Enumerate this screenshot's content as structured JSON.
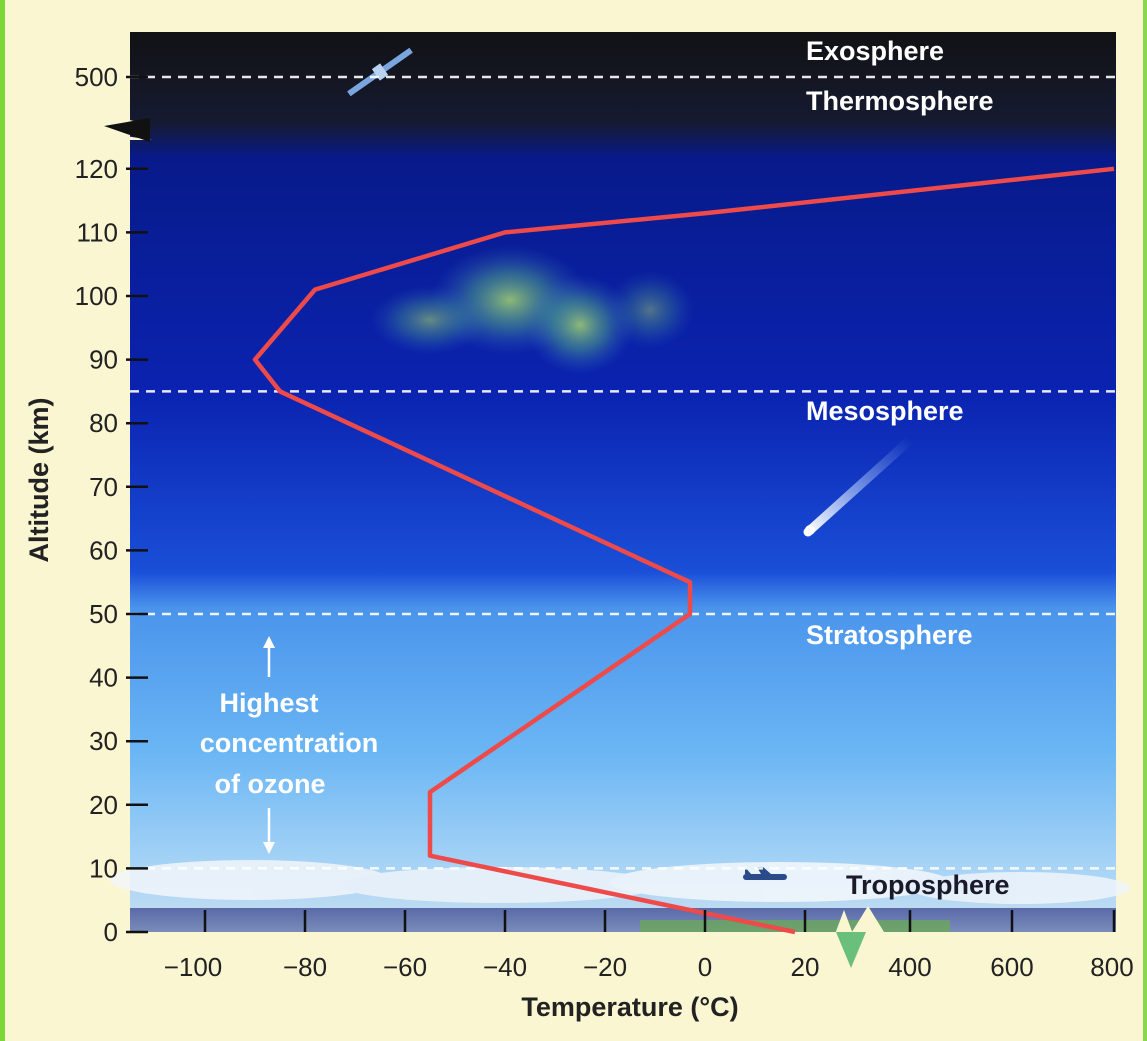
{
  "chart_data": {
    "type": "line",
    "title": "",
    "xlabel": "Temperature (°C)",
    "ylabel": "Altitude (km)",
    "x_ticks": [
      "−100",
      "−80",
      "−60",
      "−40",
      "−20",
      "0",
      "20",
      "400",
      "600",
      "800"
    ],
    "x_tick_values": [
      -100,
      -80,
      -60,
      -40,
      -20,
      0,
      20,
      400,
      600,
      800
    ],
    "y_ticks": [
      "0",
      "10",
      "20",
      "30",
      "40",
      "50",
      "60",
      "70",
      "80",
      "90",
      "100",
      "110",
      "120",
      "500"
    ],
    "y_tick_values": [
      0,
      10,
      20,
      30,
      40,
      50,
      60,
      70,
      80,
      90,
      100,
      110,
      120,
      500
    ],
    "xlim": [
      -110,
      800
    ],
    "ylim": [
      0,
      500
    ],
    "axis_breaks": {
      "x": "between 20 and 400",
      "y": "between 120 and 500"
    },
    "series": [
      {
        "name": "Temperature profile",
        "color": "#ee4a4a",
        "points": [
          [
            18,
            0
          ],
          [
            -55,
            12
          ],
          [
            -55,
            22
          ],
          [
            -3,
            50
          ],
          [
            -3,
            55
          ],
          [
            -85,
            85
          ],
          [
            -90,
            90
          ],
          [
            -78,
            101
          ],
          [
            -40,
            110
          ],
          [
            0,
            113
          ],
          [
            800,
            120
          ]
        ]
      }
    ],
    "layer_boundaries_km": [
      10,
      50,
      85,
      500
    ],
    "layers": [
      {
        "name": "Exosphere",
        "text": "Exosphere"
      },
      {
        "name": "Thermosphere",
        "text": "Thermosphere"
      },
      {
        "name": "Mesosphere",
        "text": "Mesosphere"
      },
      {
        "name": "Stratosphere",
        "text": "Stratosphere"
      },
      {
        "name": "Troposphere",
        "text": "Troposphere"
      }
    ],
    "annotation": [
      "Highest",
      "concentration",
      "of ozone"
    ]
  },
  "colors": {
    "background": "#fbf6d2",
    "line": "#ee4a4a",
    "sky_top": "#0d0d10",
    "sky_mid": "#0a1a9a",
    "sky_low": "#5aaaf0"
  }
}
